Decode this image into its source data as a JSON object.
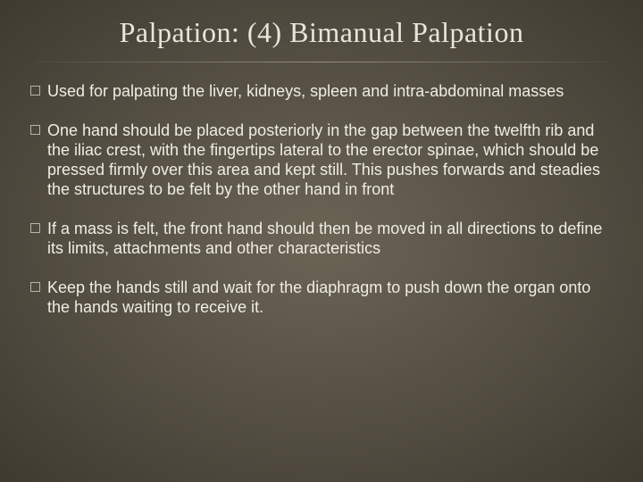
{
  "slide": {
    "title": "Palpation: (4) Bimanual Palpation",
    "background": {
      "center_color": "#6b6455",
      "mid_color": "#5a5448",
      "outer_color": "#3f3a30"
    },
    "title_style": {
      "color": "#e8e6dc",
      "fontsize": 32,
      "font_family": "Times New Roman"
    },
    "divider_color": "#c8c3b4",
    "bullet_style": {
      "marker_type": "hollow-square",
      "marker_border_color": "#b8b4a6",
      "marker_size": 11,
      "text_color": "#efede4",
      "fontsize": 18,
      "line_height": 1.22
    },
    "bullets": [
      "Used for palpating the liver, kidneys, spleen and intra-abdominal masses",
      "One hand should be placed posteriorly in the gap between the twelfth rib and the iliac crest, with the fingertips lateral to the erector spinae, which should be pressed firmly over this area and kept still. This pushes forwards and steadies the structures to be felt by the other hand in front",
      "If a mass is felt, the front hand should then be moved in all directions to define its limits, attachments and other characteristics",
      "Keep the hands still and wait for the diaphragm to push down the organ onto the hands waiting to receive it."
    ]
  }
}
